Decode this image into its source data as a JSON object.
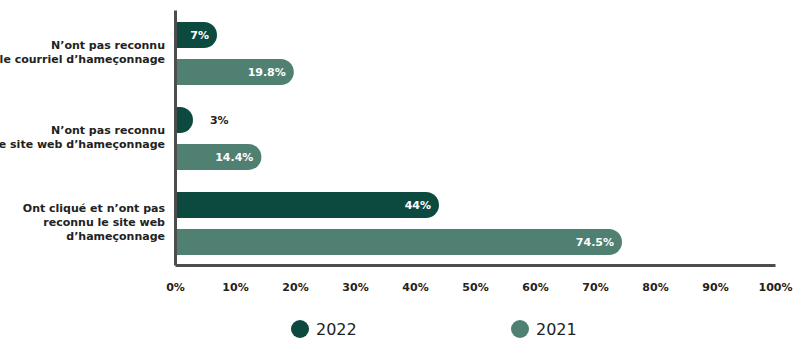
{
  "chart_data": {
    "type": "bar",
    "orientation": "horizontal",
    "categories": [
      "N’ont pas reconnu\nle courriel d’hameçonnage",
      "N’ont pas reconnu\nle site web d’hameçonnage",
      "Ont cliqué et n’ont pas\nreconnu le site web\nd’hameçonnage"
    ],
    "series": [
      {
        "name": "2022",
        "color": "#0c4a3f",
        "values": [
          7,
          3,
          44
        ],
        "value_labels": [
          "7%",
          "3%",
          "44%"
        ]
      },
      {
        "name": "2021",
        "color": "#4f8072",
        "values": [
          19.8,
          14.4,
          74.5
        ],
        "value_labels": [
          "19.8%",
          "14.4%",
          "74.5%"
        ]
      }
    ],
    "xlim": [
      0,
      100
    ],
    "xticks": [
      {
        "value": 0,
        "label": "0%"
      },
      {
        "value": 10,
        "label": "10%"
      },
      {
        "value": 20,
        "label": "20%"
      },
      {
        "value": 30,
        "label": "30%"
      },
      {
        "value": 40,
        "label": "40%"
      },
      {
        "value": 50,
        "label": "50%"
      },
      {
        "value": 60,
        "label": "60%"
      },
      {
        "value": 70,
        "label": "70%"
      },
      {
        "value": 80,
        "label": "80%"
      },
      {
        "value": 90,
        "label": "90%"
      },
      {
        "value": 100,
        "label": "100%"
      }
    ],
    "grid": false,
    "data_labels": true,
    "legend": "bottom"
  }
}
